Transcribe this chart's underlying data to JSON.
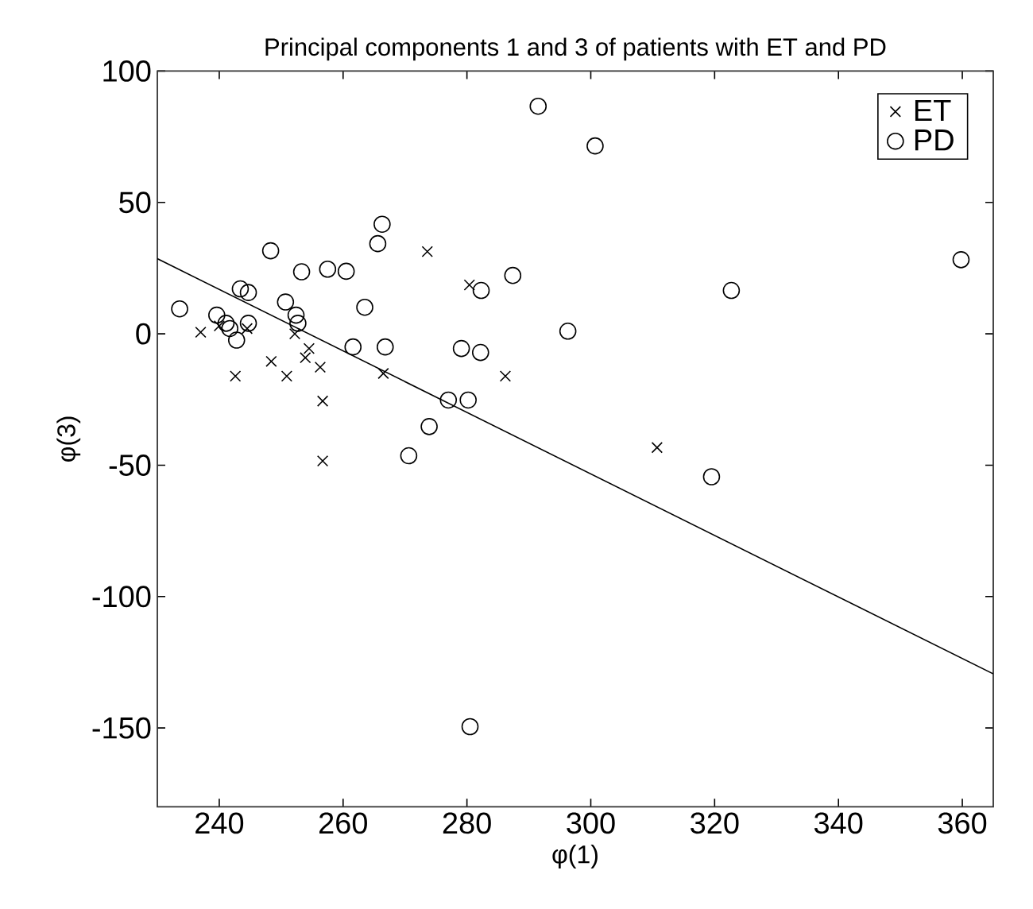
{
  "chart_data": {
    "type": "scatter",
    "title": "Principal components 1 and 3 of patients with ET and PD",
    "xlabel": "φ(1)",
    "ylabel": "φ(3)",
    "xlim": [
      230,
      365
    ],
    "ylim": [
      -180,
      100
    ],
    "xticks": [
      240,
      260,
      280,
      300,
      320,
      340,
      360
    ],
    "yticks": [
      -150,
      -100,
      -50,
      0,
      50,
      100
    ],
    "grid": false,
    "legend": "top right",
    "series": [
      {
        "name": "ET",
        "color": "#000000",
        "marker": "cross",
        "x": [
          237,
          240,
          242.6,
          244.5,
          248.4,
          250.9,
          252.2,
          253.9,
          254.5,
          256.3,
          256.7,
          256.7,
          266.5,
          273.6,
          280.4,
          286.2,
          310.7
        ],
        "values": [
          0.6,
          3,
          -16.1,
          2,
          -10.5,
          -16.1,
          0,
          -9.1,
          -5.6,
          -12.7,
          -25.6,
          -48.4,
          -15.1,
          31.3,
          18.6,
          -16.1,
          -43.3
        ]
      },
      {
        "name": "PD",
        "color": "#000000",
        "marker": "circle",
        "x": [
          233.6,
          239.6,
          241.1,
          241.7,
          242.8,
          243.4,
          244.7,
          244.7,
          248.3,
          250.7,
          252.4,
          252.7,
          253.3,
          257.5,
          260.5,
          261.6,
          263.5,
          265.6,
          266.3,
          266.8,
          270.6,
          273.9,
          277,
          280.2,
          279.1,
          282.2,
          282.3,
          287.4,
          291.5,
          300.7,
          296.3,
          322.7,
          359.8,
          319.5,
          280.5
        ],
        "values": [
          9.5,
          7.1,
          4,
          2,
          -2.4,
          17.1,
          15.7,
          4,
          31.6,
          12.1,
          7.1,
          4,
          23.6,
          24.6,
          23.8,
          -5,
          10.1,
          34.3,
          41.7,
          -5,
          -46.4,
          -35.3,
          -25.2,
          -25.2,
          -5.6,
          -7.1,
          16.5,
          22.2,
          86.6,
          71.5,
          1,
          16.5,
          28.2,
          -54.4,
          -149.5
        ]
      },
      {
        "type": "line",
        "color": "#000000",
        "line_style": "solid",
        "x": [
          230,
          365
        ],
        "values": [
          28.6,
          -129.4
        ]
      }
    ]
  }
}
